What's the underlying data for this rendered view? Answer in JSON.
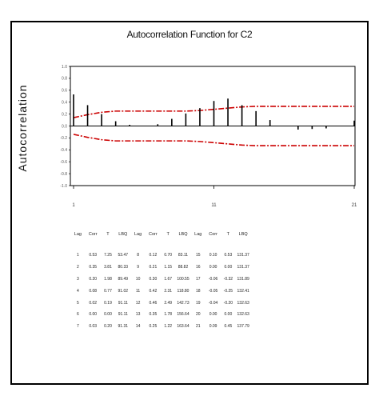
{
  "chart_data": {
    "type": "bar",
    "title": "Autocorrelation Function for C2",
    "ylabel": "Autocorrelation",
    "xlabel": "",
    "x": [
      1,
      2,
      3,
      4,
      5,
      6,
      7,
      8,
      9,
      10,
      11,
      12,
      13,
      14,
      15,
      16,
      17,
      18,
      19,
      20,
      21
    ],
    "values": [
      0.53,
      0.35,
      0.2,
      0.08,
      0.02,
      0.0,
      0.03,
      0.12,
      0.21,
      0.3,
      0.42,
      0.46,
      0.35,
      0.25,
      0.1,
      0.0,
      -0.06,
      -0.05,
      -0.04,
      0.0,
      0.09
    ],
    "ylim": [
      -1.0,
      1.0
    ],
    "yticks": [
      "1.0",
      "0.8",
      "0.6",
      "0.4",
      "0.2",
      "0.0",
      "-0.2",
      "-0.4",
      "-0.6",
      "-0.8",
      "-1.0"
    ],
    "xticks": [
      {
        "value": 1,
        "label": "1"
      },
      {
        "value": 11,
        "label": "11"
      },
      {
        "value": 21,
        "label": "21"
      }
    ],
    "confidence_limit": [
      0.14,
      0.19,
      0.23,
      0.25,
      0.25,
      0.25,
      0.25,
      0.25,
      0.25,
      0.26,
      0.28,
      0.3,
      0.32,
      0.33,
      0.33,
      0.33,
      0.33,
      0.33,
      0.33,
      0.33,
      0.33
    ],
    "series": [
      {
        "values": [
          0.53,
          0.35,
          0.2,
          0.08,
          0.02,
          0.0,
          0.03,
          0.12,
          0.21,
          0.3,
          0.42,
          0.46,
          0.35,
          0.25,
          0.1,
          0.0,
          -0.06,
          -0.05,
          -0.04,
          0.0,
          0.09
        ]
      },
      {
        "values": [
          0.14,
          0.19,
          0.23,
          0.25,
          0.25,
          0.25,
          0.25,
          0.25,
          0.25,
          0.26,
          0.28,
          0.3,
          0.32,
          0.33,
          0.33,
          0.33,
          0.33,
          0.33,
          0.33,
          0.33,
          0.33
        ]
      },
      {
        "values": [
          -0.14,
          -0.19,
          -0.23,
          -0.25,
          -0.25,
          -0.25,
          -0.25,
          -0.25,
          -0.25,
          -0.26,
          -0.28,
          -0.3,
          -0.32,
          -0.33,
          -0.33,
          -0.33,
          -0.33,
          -0.33,
          -0.33,
          -0.33,
          -0.33
        ]
      }
    ],
    "colors": {
      "bars": "#000000",
      "limits": "#cc0000",
      "zero_line": "#000000"
    },
    "grid": false,
    "table": {
      "headers": [
        "Lag",
        "Corr",
        "T",
        "LBQ",
        "Lag",
        "Corr",
        "T",
        "LBQ",
        "Lag",
        "Corr",
        "T",
        "LBQ"
      ],
      "rows": [
        [
          "1",
          "0.53",
          "7.25",
          "53.47",
          "8",
          "0.12",
          "0.70",
          "83.11",
          "15",
          "0.10",
          "0.53",
          "131.37"
        ],
        [
          "2",
          "0.35",
          "3.81",
          "80.33",
          "9",
          "0.21",
          "1.15",
          "88.82",
          "16",
          "0.00",
          "0.00",
          "131.37"
        ],
        [
          "3",
          "0.20",
          "1.98",
          "89.49",
          "10",
          "0.30",
          "1.67",
          "100.55",
          "17",
          "-0.06",
          "-0.32",
          "131.89"
        ],
        [
          "4",
          "0.08",
          "0.77",
          "91.02",
          "11",
          "0.42",
          "2.31",
          "118.80",
          "18",
          "-0.05",
          "-0.25",
          "132.41"
        ],
        [
          "5",
          "0.02",
          "0.19",
          "91.11",
          "12",
          "0.46",
          "2.49",
          "142.73",
          "19",
          "-0.04",
          "-0.20",
          "132.63"
        ],
        [
          "6",
          "0.00",
          "0.00",
          "91.11",
          "13",
          "0.35",
          "1.78",
          "156.64",
          "20",
          "0.00",
          "0.00",
          "132.63"
        ],
        [
          "7",
          "0.03",
          "0.20",
          "91.31",
          "14",
          "0.25",
          "1.22",
          "163.64",
          "21",
          "0.09",
          "0.45",
          "137.79"
        ]
      ]
    }
  }
}
